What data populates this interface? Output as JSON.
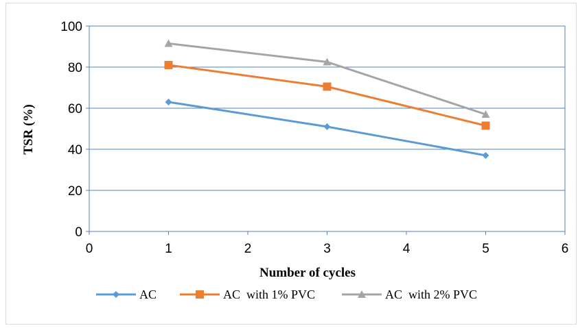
{
  "chart_data": {
    "type": "line",
    "title": "",
    "xlabel": "Number of cycles",
    "ylabel": "TSR (%)",
    "xlim": [
      0,
      6
    ],
    "ylim": [
      0,
      100
    ],
    "xticks": [
      0,
      1,
      2,
      3,
      4,
      5,
      6
    ],
    "yticks": [
      0,
      20,
      40,
      60,
      80,
      100
    ],
    "grid": "horizontal",
    "legend_position": "bottom",
    "x": [
      1,
      3,
      5
    ],
    "series": [
      {
        "name": "AC",
        "values": [
          63,
          51,
          37
        ],
        "color": "#5B9BD5",
        "marker": "diamond"
      },
      {
        "name": "AC  with 1% PVC",
        "values": [
          81,
          70.5,
          51.5
        ],
        "color": "#ED7D31",
        "marker": "square"
      },
      {
        "name": "AC  with 2% PVC",
        "values": [
          91.5,
          82.5,
          57
        ],
        "color": "#A5A5A5",
        "marker": "triangle"
      }
    ]
  }
}
